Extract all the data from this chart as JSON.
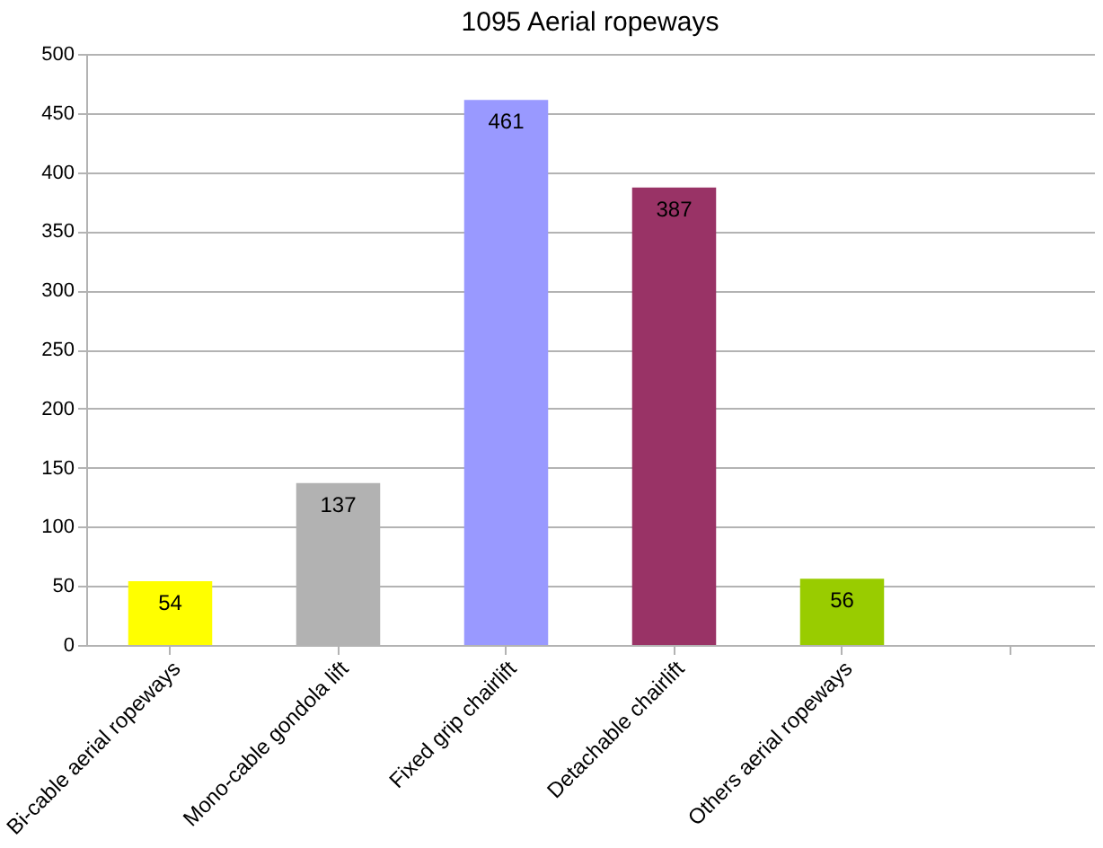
{
  "chart_data": {
    "type": "bar",
    "title": "1095 Aerial ropeways",
    "categories": [
      "Bi-cable aerial ropeways",
      "Mono-cable gondola lift",
      "Fixed grip chairlift",
      "Detachable chairlift",
      "Others aerial ropeways",
      null
    ],
    "values": [
      54,
      137,
      461,
      387,
      56,
      null
    ],
    "colors": [
      "#ffff00",
      "#b2b2b2",
      "#9999ff",
      "#993366",
      "#99cc00",
      "#ffffff"
    ],
    "ylim": [
      0,
      500
    ],
    "yticks": [
      0,
      50,
      100,
      150,
      200,
      250,
      300,
      350,
      400,
      450,
      500
    ],
    "grid": "y",
    "data_labels": true
  }
}
